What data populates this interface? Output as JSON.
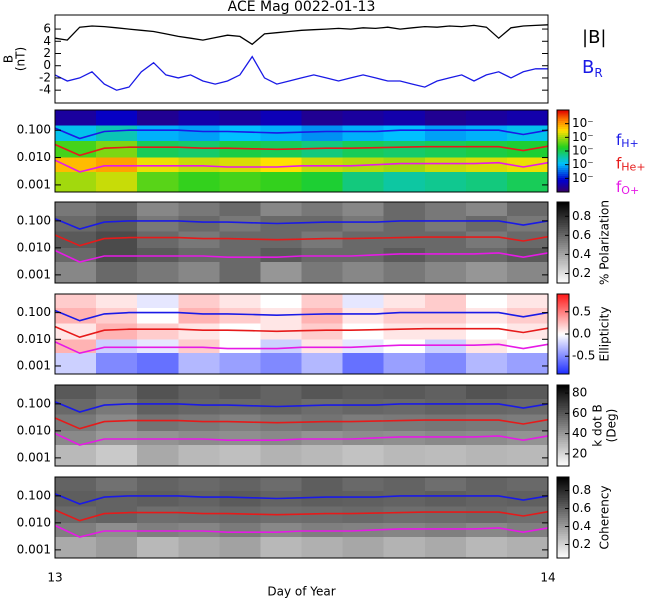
{
  "chart_data": [
    {
      "type": "line",
      "title": "ACE Mag 0022-01-13",
      "ylabel": "B",
      "ylabel_unit": "(nT)",
      "xlim": [
        13,
        14
      ],
      "ylim": [
        -6.1,
        8.3
      ],
      "yticks": [
        -4,
        -2,
        0,
        2,
        4,
        6
      ],
      "x": [
        13,
        13.025,
        13.05,
        13.075,
        13.1,
        13.125,
        13.15,
        13.175,
        13.2,
        13.225,
        13.25,
        13.275,
        13.3,
        13.325,
        13.35,
        13.375,
        13.4,
        13.425,
        13.45,
        13.475,
        13.5,
        13.525,
        13.55,
        13.575,
        13.6,
        13.625,
        13.65,
        13.675,
        13.7,
        13.725,
        13.75,
        13.775,
        13.8,
        13.825,
        13.85,
        13.875,
        13.9,
        13.925,
        13.95,
        13.975,
        14
      ],
      "series": [
        {
          "name": "|B|",
          "color": "#000000",
          "values": [
            4.5,
            4.2,
            6.3,
            6.5,
            6.4,
            6.2,
            6.0,
            5.8,
            5.6,
            5.2,
            4.8,
            4.5,
            4.2,
            4.6,
            5.0,
            4.8,
            3.5,
            5.2,
            5.4,
            5.6,
            5.8,
            5.9,
            6.0,
            6.1,
            6.0,
            6.2,
            6.1,
            6.3,
            6.0,
            6.2,
            6.4,
            6.3,
            6.5,
            6.4,
            6.6,
            6.3,
            4.5,
            6.2,
            6.5,
            6.6,
            6.7
          ]
        },
        {
          "name": "B",
          "subscript": "R",
          "color": "#1a1ae6",
          "values": [
            -1.5,
            -2.5,
            -2.0,
            -1.0,
            -3.0,
            -4.0,
            -3.5,
            -1.0,
            0.5,
            -1.5,
            -2.0,
            -1.5,
            -2.5,
            -3.0,
            -2.5,
            -1.5,
            1.5,
            -2.0,
            -3.0,
            -2.5,
            -2.0,
            -1.5,
            -2.0,
            -2.5,
            -2.0,
            -1.5,
            -2.0,
            -2.5,
            -2.5,
            -3.0,
            -3.5,
            -2.5,
            -2.0,
            -1.5,
            -2.5,
            -1.5,
            -1.0,
            -2.0,
            -1.0,
            -0.5,
            -0.5
          ]
        }
      ]
    },
    {
      "type": "heatmap",
      "colormap": "rainbow",
      "log_y": true,
      "xlim": [
        13,
        14
      ],
      "ylim": [
        0.00055,
        0.55
      ],
      "yticks": [
        {
          "value": 0.001,
          "label": "0.001"
        },
        {
          "value": 0.01,
          "label": "0.010"
        },
        {
          "value": 0.1,
          "label": "0.100"
        }
      ],
      "x_bins": [
        13,
        13.0833,
        13.1667,
        13.25,
        13.3333,
        13.4167,
        13.5,
        13.5833,
        13.6667,
        13.75,
        13.8333,
        13.9167,
        14
      ],
      "y_bins": [
        0.55,
        0.15,
        0.04,
        0.01,
        0.003,
        0.00055
      ],
      "values": [
        [
          -5.5,
          -5.2,
          -5.6,
          -5.4,
          -5.5,
          -5.3,
          -5.6,
          -5.5,
          -5.4,
          -5.6,
          -5.5,
          -5.4
        ],
        [
          -3.8,
          -3.5,
          -4.0,
          -4.1,
          -3.9,
          -4.0,
          -4.2,
          -4.0,
          -3.9,
          -4.1,
          -4.0,
          -3.8
        ],
        [
          -2.5,
          -2.2,
          -3.0,
          -3.1,
          -2.9,
          -3.0,
          -3.2,
          -3.0,
          -3.1,
          -3.0,
          -2.9,
          -2.8
        ],
        [
          -1.2,
          -1.0,
          -1.6,
          -1.8,
          -1.7,
          -1.5,
          -1.8,
          -1.9,
          -2.0,
          -1.8,
          -1.7,
          -1.6
        ],
        [
          -2.0,
          -1.8,
          -2.4,
          -2.6,
          -2.5,
          -2.6,
          -2.8,
          -3.2,
          -3.4,
          -3.3,
          -3.2,
          -3.0
        ]
      ],
      "clim": [
        -6,
        0
      ],
      "cticks": [
        {
          "value": -5,
          "label": "10⁻"
        },
        {
          "value": -4,
          "label": "10⁻"
        },
        {
          "value": -3,
          "label": "10⁻"
        },
        {
          "value": -2,
          "label": "10⁻"
        },
        {
          "value": -1,
          "label": "10⁻"
        }
      ],
      "x": [
        13,
        13.05,
        13.1,
        13.15,
        13.2,
        13.25,
        13.3,
        13.35,
        13.4,
        13.45,
        13.5,
        13.55,
        13.6,
        13.65,
        13.7,
        13.75,
        13.8,
        13.85,
        13.9,
        13.95,
        14
      ],
      "series": [
        {
          "name": "f",
          "subscript": "H+",
          "color": "#1a1ae6",
          "values": [
            0.12,
            0.05,
            0.09,
            0.1,
            0.1,
            0.1,
            0.09,
            0.09,
            0.085,
            0.08,
            0.085,
            0.09,
            0.09,
            0.09,
            0.1,
            0.1,
            0.1,
            0.1,
            0.1,
            0.07,
            0.1
          ]
        },
        {
          "name": "f",
          "subscript": "He+",
          "color": "#e61a1a",
          "values": [
            0.03,
            0.012,
            0.022,
            0.024,
            0.024,
            0.024,
            0.022,
            0.022,
            0.021,
            0.02,
            0.021,
            0.022,
            0.022,
            0.023,
            0.024,
            0.025,
            0.025,
            0.025,
            0.025,
            0.018,
            0.026
          ]
        },
        {
          "name": "f",
          "subscript": "O+",
          "color": "#e61ae6",
          "values": [
            0.008,
            0.003,
            0.005,
            0.005,
            0.005,
            0.005,
            0.005,
            0.0045,
            0.0045,
            0.0045,
            0.005,
            0.005,
            0.005,
            0.0055,
            0.006,
            0.006,
            0.006,
            0.006,
            0.0065,
            0.0045,
            0.0065
          ]
        }
      ]
    },
    {
      "type": "heatmap",
      "colormap": "gray",
      "log_y": true,
      "ctitle": "% Polarization",
      "xlim": [
        13,
        14
      ],
      "ylim": [
        0.0005,
        0.5
      ],
      "yticks": [
        {
          "value": 0.001,
          "label": "0.001"
        },
        {
          "value": 0.01,
          "label": "0.010"
        },
        {
          "value": 0.1,
          "label": "0.100"
        }
      ],
      "x_bins": [
        13,
        13.0833,
        13.1667,
        13.25,
        13.3333,
        13.4167,
        13.5,
        13.5833,
        13.6667,
        13.75,
        13.8333,
        13.9167,
        14
      ],
      "y_bins": [
        0.5,
        0.15,
        0.04,
        0.01,
        0.003,
        0.0005
      ],
      "values": [
        [
          0.55,
          0.6,
          0.5,
          0.55,
          0.6,
          0.5,
          0.55,
          0.5,
          0.6,
          0.55,
          0.5,
          0.6
        ],
        [
          0.6,
          0.65,
          0.55,
          0.6,
          0.55,
          0.6,
          0.6,
          0.55,
          0.6,
          0.55,
          0.6,
          0.55
        ],
        [
          0.65,
          0.7,
          0.6,
          0.55,
          0.6,
          0.6,
          0.55,
          0.6,
          0.6,
          0.6,
          0.55,
          0.6
        ],
        [
          0.6,
          0.7,
          0.65,
          0.6,
          0.6,
          0.65,
          0.6,
          0.6,
          0.65,
          0.6,
          0.6,
          0.65
        ],
        [
          0.5,
          0.6,
          0.55,
          0.5,
          0.6,
          0.45,
          0.55,
          0.5,
          0.55,
          0.5,
          0.45,
          0.5
        ]
      ],
      "clim": [
        0.1,
        0.95
      ],
      "cticks": [
        0.2,
        0.4,
        0.6,
        0.8
      ]
    },
    {
      "type": "heatmap",
      "colormap": "bwr",
      "log_y": true,
      "ctitle": "Ellipticity",
      "xlim": [
        13,
        14
      ],
      "ylim": [
        0.0005,
        0.5
      ],
      "yticks": [
        {
          "value": 0.001,
          "label": "0.001"
        },
        {
          "value": 0.01,
          "label": "0.010"
        },
        {
          "value": 0.1,
          "label": "0.100"
        }
      ],
      "x_bins": [
        13,
        13.0833,
        13.1667,
        13.25,
        13.3333,
        13.4167,
        13.5,
        13.5833,
        13.6667,
        13.75,
        13.8333,
        13.9167,
        14
      ],
      "y_bins": [
        0.5,
        0.15,
        0.04,
        0.01,
        0.003,
        0.0005
      ],
      "values": [
        [
          0.2,
          0.1,
          -0.1,
          0.2,
          0.1,
          0.0,
          0.2,
          -0.1,
          0.1,
          0.2,
          0.0,
          0.1
        ],
        [
          0.3,
          0.2,
          0.0,
          0.3,
          0.2,
          0.1,
          0.3,
          0.1,
          0.2,
          0.2,
          0.1,
          0.2
        ],
        [
          0.1,
          0.3,
          0.2,
          0.1,
          0.0,
          0.1,
          0.2,
          0.0,
          0.1,
          0.1,
          0.0,
          0.1
        ],
        [
          0.3,
          -0.2,
          -0.1,
          0.2,
          0.0,
          -0.2,
          0.1,
          -0.1,
          0.0,
          -0.2,
          0.1,
          0.0
        ],
        [
          -0.2,
          -0.5,
          -0.6,
          -0.3,
          -0.4,
          -0.5,
          -0.3,
          -0.6,
          -0.4,
          -0.5,
          -0.3,
          -0.4
        ]
      ],
      "clim": [
        -0.9,
        0.9
      ],
      "cticks": [
        -0.5,
        {
          "value": 0,
          "label": "0.0"
        },
        0.5
      ]
    },
    {
      "type": "heatmap",
      "colormap": "gray",
      "log_y": true,
      "ctitle": "k dot B",
      "ctitle_unit": "(Deg)",
      "xlim": [
        13,
        14
      ],
      "ylim": [
        0.0005,
        0.5
      ],
      "yticks": [
        {
          "value": 0.001,
          "label": "0.001"
        },
        {
          "value": 0.01,
          "label": "0.010"
        },
        {
          "value": 0.1,
          "label": "0.100"
        }
      ],
      "x_bins": [
        13,
        13.0833,
        13.1667,
        13.25,
        13.3333,
        13.4167,
        13.5,
        13.5833,
        13.6667,
        13.75,
        13.8333,
        13.9167,
        14
      ],
      "y_bins": [
        0.5,
        0.15,
        0.04,
        0.01,
        0.003,
        0.0005
      ],
      "values": [
        [
          60,
          55,
          62,
          58,
          60,
          57,
          61,
          59,
          60,
          58,
          62,
          60
        ],
        [
          55,
          50,
          58,
          56,
          55,
          57,
          54,
          56,
          55,
          57,
          56,
          55
        ],
        [
          50,
          45,
          52,
          50,
          48,
          50,
          52,
          49,
          50,
          51,
          50,
          49
        ],
        [
          45,
          40,
          42,
          44,
          43,
          45,
          42,
          44,
          43,
          45,
          44,
          42
        ],
        [
          30,
          25,
          35,
          30,
          28,
          32,
          30,
          27,
          30,
          29,
          31,
          30
        ]
      ],
      "clim": [
        8,
        88
      ],
      "cticks": [
        20,
        40,
        60,
        80
      ]
    },
    {
      "type": "heatmap",
      "colormap": "gray",
      "log_y": true,
      "ctitle": "Coherency",
      "xlim": [
        13,
        14
      ],
      "ylim": [
        0.0005,
        0.5
      ],
      "xticks": [
        13,
        14
      ],
      "xlabel": "Day of Year",
      "yticks": [
        {
          "value": 0.001,
          "label": "0.001"
        },
        {
          "value": 0.01,
          "label": "0.010"
        },
        {
          "value": 0.1,
          "label": "0.100"
        }
      ],
      "x_bins": [
        13,
        13.0833,
        13.1667,
        13.25,
        13.3333,
        13.4167,
        13.5,
        13.5833,
        13.6667,
        13.75,
        13.8333,
        13.9167,
        14
      ],
      "y_bins": [
        0.5,
        0.15,
        0.04,
        0.01,
        0.003,
        0.0005
      ],
      "values": [
        [
          0.6,
          0.55,
          0.6,
          0.58,
          0.6,
          0.57,
          0.62,
          0.58,
          0.6,
          0.56,
          0.6,
          0.58
        ],
        [
          0.62,
          0.6,
          0.62,
          0.6,
          0.63,
          0.6,
          0.62,
          0.61,
          0.6,
          0.62,
          0.6,
          0.61
        ],
        [
          0.58,
          0.6,
          0.56,
          0.57,
          0.58,
          0.56,
          0.57,
          0.58,
          0.56,
          0.57,
          0.58,
          0.56
        ],
        [
          0.5,
          0.45,
          0.5,
          0.48,
          0.52,
          0.47,
          0.5,
          0.49,
          0.48,
          0.5,
          0.47,
          0.5
        ],
        [
          0.35,
          0.4,
          0.3,
          0.35,
          0.38,
          0.3,
          0.33,
          0.36,
          0.32,
          0.35,
          0.3,
          0.33
        ]
      ],
      "clim": [
        0.05,
        0.95
      ],
      "cticks": [
        0.2,
        0.4,
        0.6,
        0.8
      ]
    }
  ]
}
